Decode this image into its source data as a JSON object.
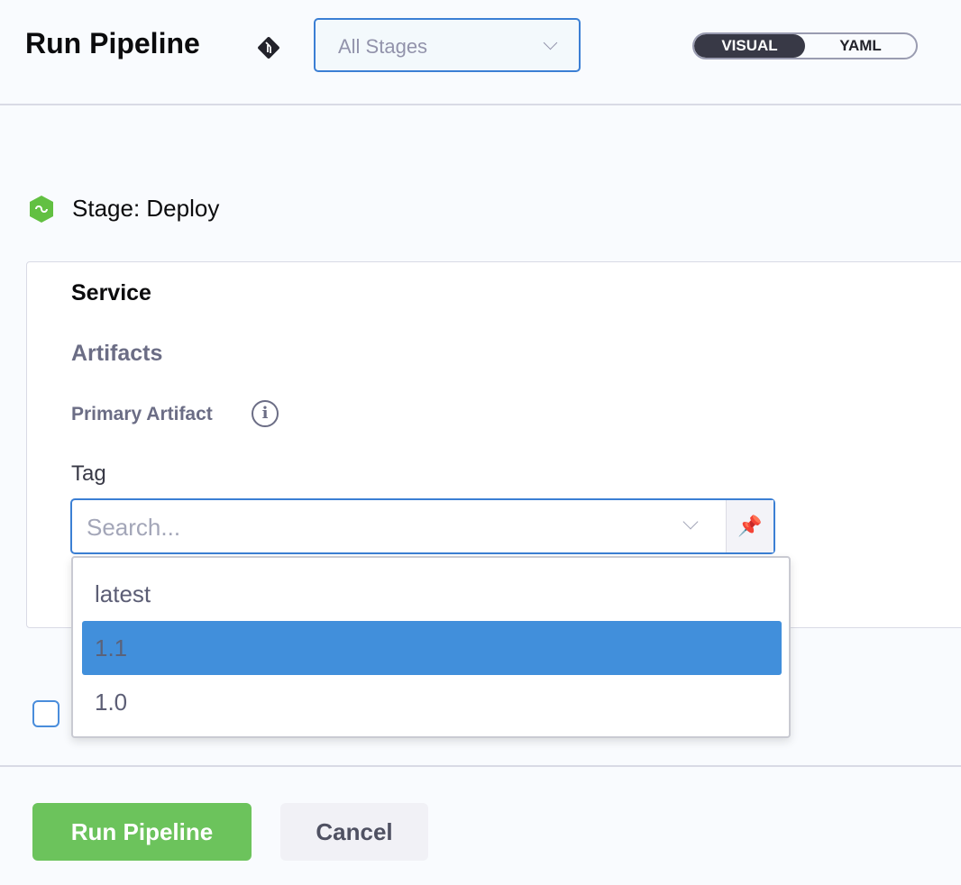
{
  "header": {
    "title": "Run Pipeline",
    "stage_select": "All Stages",
    "toggle": {
      "visual": "VISUAL",
      "yaml": "YAML",
      "active": "VISUAL"
    }
  },
  "stage": {
    "label": "Stage: Deploy"
  },
  "form": {
    "service": "Service",
    "artifacts": "Artifacts",
    "primary_artifact": "Primary Artifact",
    "tag_label": "Tag",
    "tag_placeholder": "Search...",
    "options": [
      "latest",
      "1.1",
      "1.0"
    ],
    "highlighted": "1.1"
  },
  "footer": {
    "run": "Run Pipeline",
    "cancel": "Cancel"
  },
  "colors": {
    "accent": "#3b7fd4",
    "run": "#6cc35c",
    "highlight": "#418fdb"
  }
}
